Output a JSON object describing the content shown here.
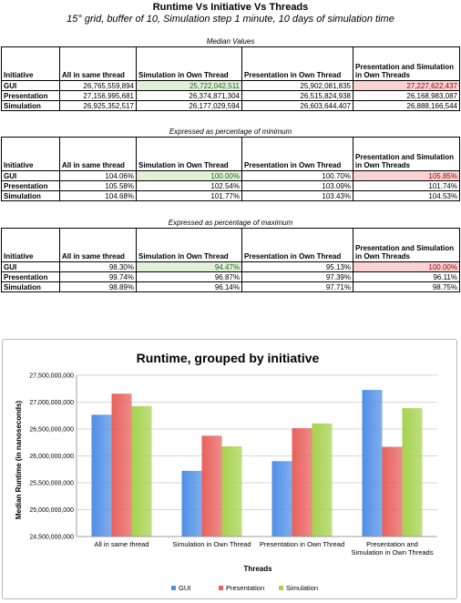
{
  "title": "Runtime Vs Initiative Vs Threads",
  "subtitle": "15° grid, buffer of 10, Simulation step 1 minute, 10 days of simulation time",
  "tables": [
    {
      "caption": "Median Values",
      "headers": [
        "Initiative",
        "All in same thread",
        "Simulation in Own Thread",
        "Presentation in Own Thread",
        "Presentation and Simulation in Own Threads"
      ],
      "rows": [
        {
          "label": "GUI",
          "cells": [
            "26,765,559,894",
            "25,722,042,511",
            "25,902,081,835",
            "27,227,622,437"
          ]
        },
        {
          "label": "Presentation",
          "cells": [
            "27,156,995,681",
            "26,374,871,304",
            "26,515,824,938",
            "26,168,983,087"
          ]
        },
        {
          "label": "Simulation",
          "cells": [
            "26,925,352,517",
            "26,177,029,594",
            "26,603,644,407",
            "26,888,166,544"
          ]
        }
      ]
    },
    {
      "caption": "Expressed as percentage of minimum",
      "headers": [
        "Initiative",
        "All in same thread",
        "Simulation in Own Thread",
        "Presentation in Own Thread",
        "Presentation and Simulation in Own Threads"
      ],
      "rows": [
        {
          "label": "GUI",
          "cells": [
            "104.06%",
            "100.00%",
            "100.70%",
            "105.85%"
          ]
        },
        {
          "label": "Presentation",
          "cells": [
            "105.58%",
            "102.54%",
            "103.09%",
            "101.74%"
          ]
        },
        {
          "label": "Simulation",
          "cells": [
            "104.68%",
            "101.77%",
            "103.43%",
            "104.53%"
          ]
        }
      ]
    },
    {
      "caption": "Expressed as percentage of maximum",
      "headers": [
        "Initiative",
        "All in same thread",
        "Simulation in Own Thread",
        "Presentation in Own Thread",
        "Presentation and Simulation in Own Threads"
      ],
      "rows": [
        {
          "label": "GUI",
          "cells": [
            "98.30%",
            "94.47%",
            "95.13%",
            "100.00%"
          ]
        },
        {
          "label": "Presentation",
          "cells": [
            "99.74%",
            "96.87%",
            "97.39%",
            "96.11%"
          ]
        },
        {
          "label": "Simulation",
          "cells": [
            "98.89%",
            "96.14%",
            "97.71%",
            "98.75%"
          ]
        }
      ]
    }
  ],
  "highlight_colors": {
    "min": "#e2f0d9",
    "max": "#f9d3d3"
  },
  "chart_data": {
    "type": "bar",
    "title": "Runtime, grouped by initiative",
    "xlabel": "Threads",
    "ylabel": "Median Runtime (in nanoseconds)",
    "categories": [
      "All in same thread",
      "Simulation in Own Thread",
      "Presentation in Own Thread",
      "Presentation and Simulation in Own Threads"
    ],
    "series": [
      {
        "name": "GUI",
        "color": "#4f8fe6",
        "values": [
          26765559894,
          25722042511,
          25902081835,
          27227622437
        ]
      },
      {
        "name": "Presentation",
        "color": "#e8605c",
        "values": [
          27156995681,
          26374871304,
          26515824938,
          26168983087
        ]
      },
      {
        "name": "Simulation",
        "color": "#a6d24e",
        "values": [
          26925352517,
          26177029594,
          26603644407,
          26888166544
        ]
      }
    ],
    "ylim": [
      24500000000,
      27500000000
    ],
    "yticks": [
      "27,500,000,000",
      "27,000,000,000",
      "26,500,000,000",
      "26,000,000,000",
      "25,500,000,000",
      "25,000,000,000",
      "24,500,000,000"
    ],
    "grid": true,
    "legend": "bottom"
  }
}
